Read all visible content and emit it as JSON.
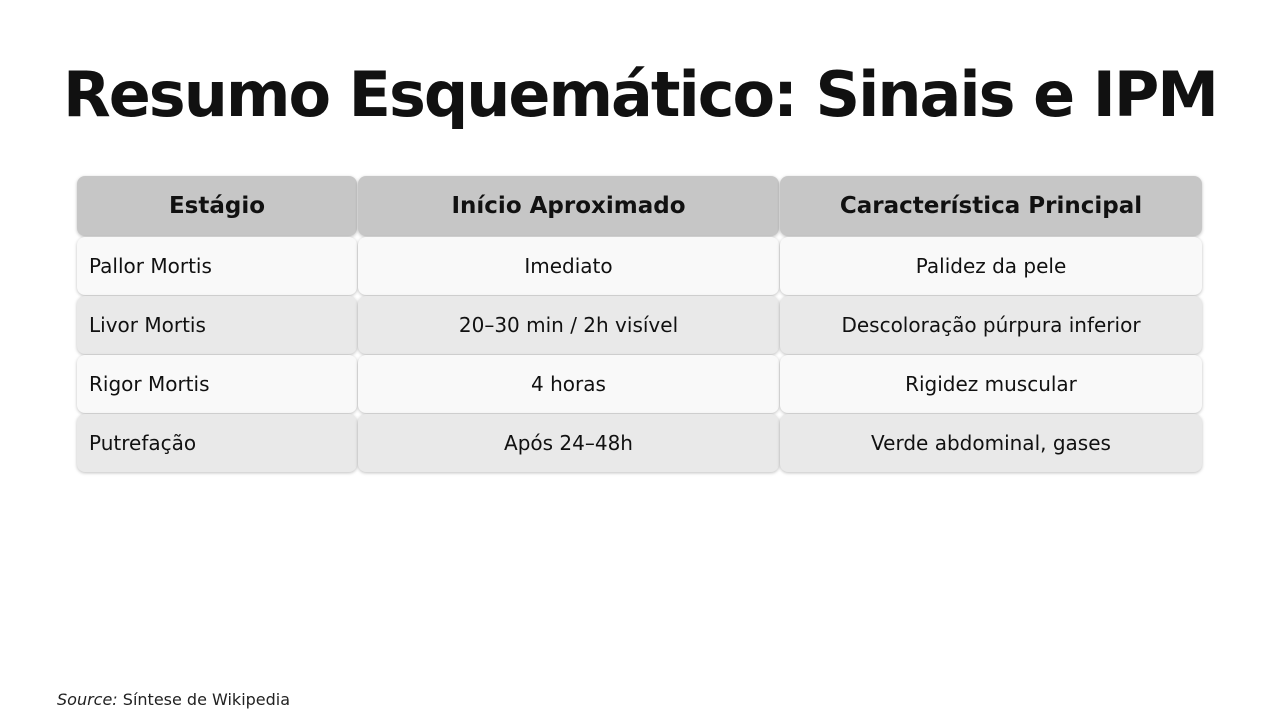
{
  "title": "Resumo Esquemático: Sinais e IPM",
  "table": {
    "headers": [
      "Estágio",
      "Início Aproximado",
      "Característica Principal"
    ],
    "rows": [
      [
        "Pallor Mortis",
        "Imediato",
        "Palidez da pele"
      ],
      [
        "Livor Mortis",
        "20–30 min / 2h visível",
        "Descoloração púrpura inferior"
      ],
      [
        "Rigor Mortis",
        "4 horas",
        "Rigidez muscular"
      ],
      [
        "Putrefação",
        "Após 24–48h",
        "Verde abdominal, gases"
      ]
    ]
  },
  "source": {
    "label": "Source:",
    "text": "Síntese de Wikipedia"
  }
}
